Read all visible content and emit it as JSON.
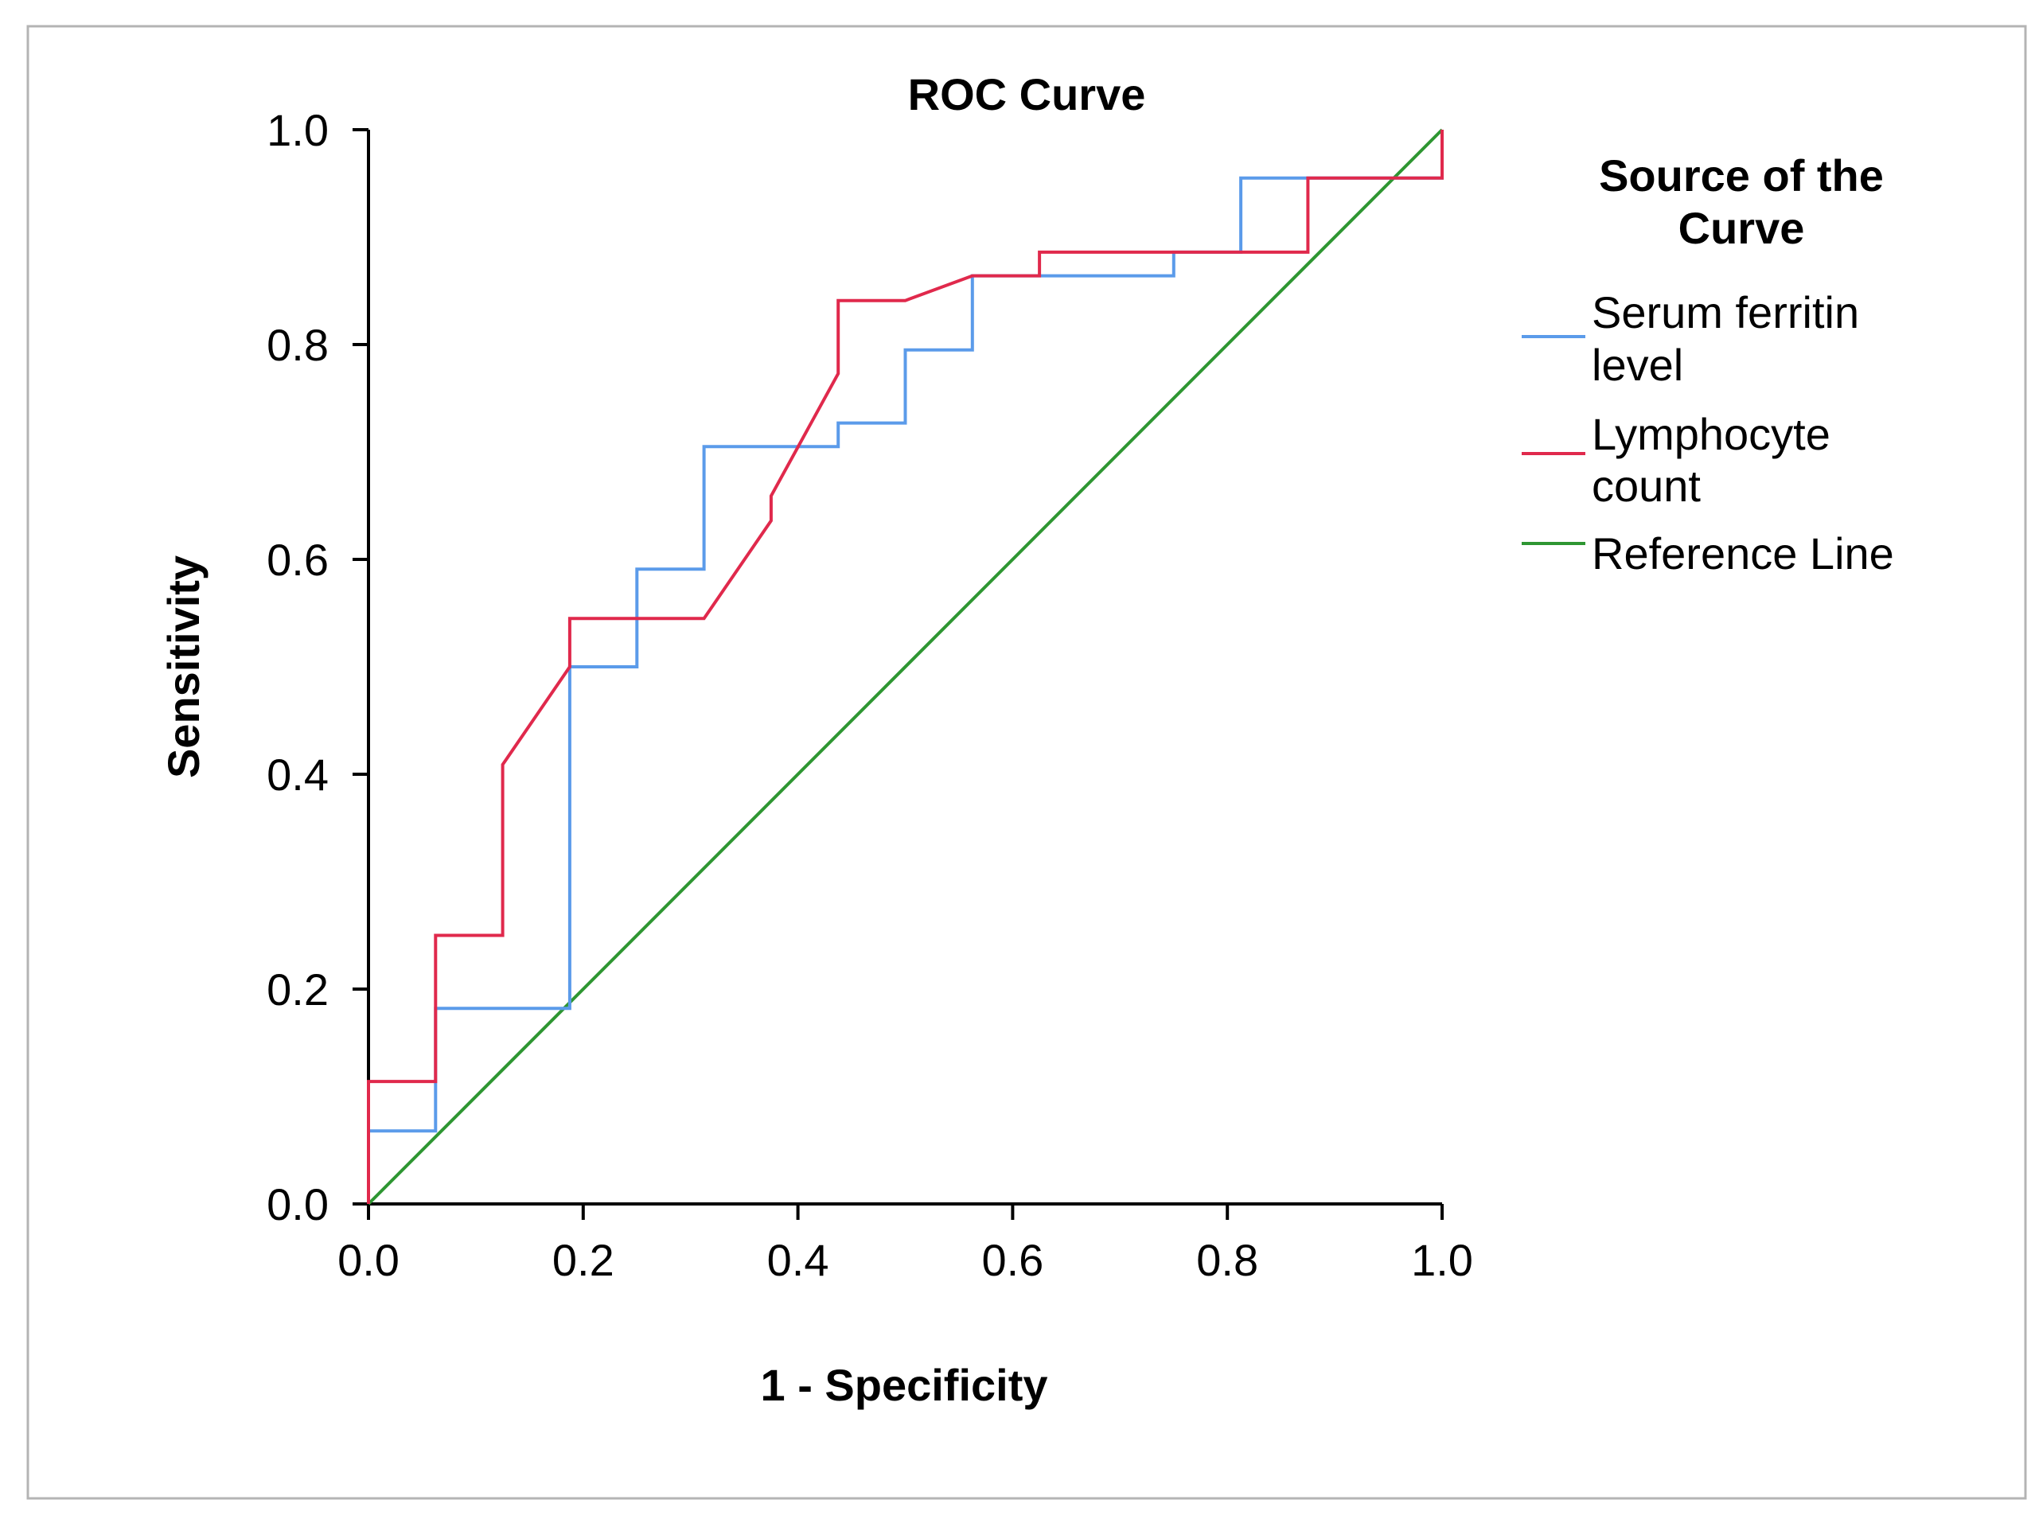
{
  "chart_data": {
    "type": "line",
    "title": "ROC Curve",
    "xlabel": "1 - Specificity",
    "ylabel": "Sensitivity",
    "xlim": [
      0,
      1
    ],
    "ylim": [
      0,
      1
    ],
    "x_ticks": [
      0,
      0.2,
      0.4,
      0.6,
      0.8,
      1.0
    ],
    "y_ticks": [
      0,
      0.2,
      0.4,
      0.6,
      0.8,
      1.0
    ],
    "x_tick_labels": [
      "0.0",
      "0.2",
      "0.4",
      "0.6",
      "0.8",
      "1.0"
    ],
    "y_tick_labels": [
      "0.0",
      "0.2",
      "0.4",
      "0.6",
      "0.8",
      "1.0"
    ],
    "grid": false,
    "legend": {
      "title_line1": "Source of the",
      "title_line2": "Curve",
      "placement": "right"
    },
    "series": [
      {
        "name": "Serum ferritin level",
        "legend_line1": "Serum ferritin",
        "legend_line2": "level",
        "color": "#5b9bea",
        "x": [
          0,
          0,
          0.0625,
          0.0625,
          0.1875,
          0.1875,
          0.25,
          0.25,
          0.3125,
          0.3125,
          0.4375,
          0.4375,
          0.5,
          0.5,
          0.5625,
          0.5625,
          0.75,
          0.75,
          0.8125,
          0.8125,
          0.875,
          0.875,
          1,
          1
        ],
        "y": [
          0,
          0.068,
          0.068,
          0.182,
          0.182,
          0.5,
          0.5,
          0.591,
          0.591,
          0.705,
          0.705,
          0.727,
          0.727,
          0.795,
          0.795,
          0.864,
          0.864,
          0.886,
          0.886,
          0.955,
          0.955,
          0.955,
          0.955,
          1
        ]
      },
      {
        "name": "Lymphocyte count",
        "legend_line1": "Lymphocyte",
        "legend_line2": "count",
        "color": "#e0294c",
        "x": [
          0,
          0,
          0.0625,
          0.0625,
          0.125,
          0.125,
          0.1875,
          0.1875,
          0.3125,
          0.375,
          0.375,
          0.4375,
          0.4375,
          0.5,
          0.5625,
          0.625,
          0.625,
          0.875,
          0.875,
          1,
          1
        ],
        "y": [
          0,
          0.114,
          0.114,
          0.25,
          0.25,
          0.409,
          0.5,
          0.545,
          0.545,
          0.636,
          0.659,
          0.773,
          0.841,
          0.841,
          0.864,
          0.864,
          0.886,
          0.886,
          0.955,
          0.955,
          1
        ]
      },
      {
        "name": "Reference Line",
        "legend_line1": "Reference Line",
        "legend_line2": "",
        "color": "#2e9632",
        "x": [
          0,
          1
        ],
        "y": [
          0,
          1
        ]
      }
    ]
  }
}
